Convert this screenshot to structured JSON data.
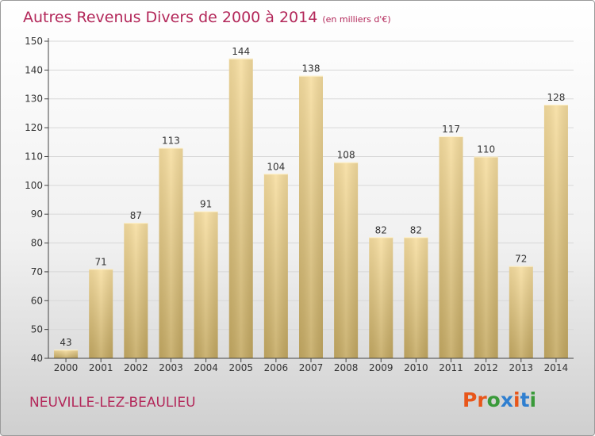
{
  "title": "Autres Revenus Divers de 2000 à 2014",
  "subtitle": "(en milliers d'€)",
  "commune": "NEUVILLE-LEZ-BEAULIEU",
  "logo": {
    "text": "Proxiti",
    "colors": [
      "#e8561a",
      "#e8561a",
      "#3a9a3a",
      "#2f7fd0",
      "#e8561a",
      "#2f7fd0",
      "#3a9a3a"
    ]
  },
  "colors": {
    "title": "#b3285a",
    "bar_top": "#f7dea0",
    "bar_bottom": "#c4a962",
    "axis": "#444444",
    "grid": "#d8d8d8"
  },
  "chart_data": {
    "type": "bar",
    "categories": [
      "2000",
      "2001",
      "2002",
      "2003",
      "2004",
      "2005",
      "2006",
      "2007",
      "2008",
      "2009",
      "2010",
      "2011",
      "2012",
      "2013",
      "2014"
    ],
    "values": [
      43,
      71,
      87,
      113,
      91,
      144,
      104,
      138,
      108,
      82,
      82,
      117,
      110,
      72,
      128
    ],
    "yticks": [
      40,
      50,
      60,
      70,
      80,
      90,
      100,
      110,
      120,
      130,
      140,
      150
    ],
    "ylim": [
      40,
      150
    ],
    "grid": true,
    "legend": "none"
  }
}
